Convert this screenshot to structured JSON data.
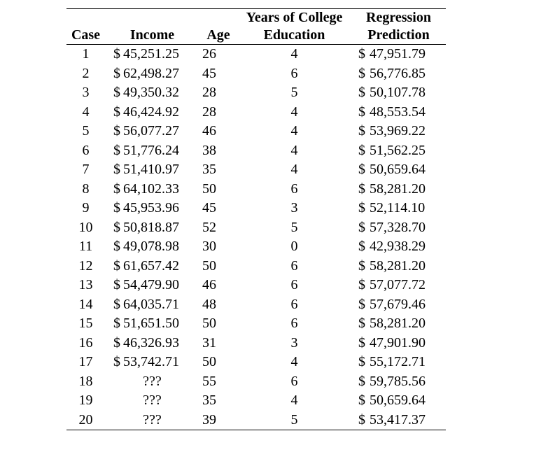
{
  "table": {
    "headers": {
      "case": "Case",
      "income": "Income",
      "age": "Age",
      "education_line1": "Years of College",
      "education_line2": "Education",
      "prediction_line1": "Regression",
      "prediction_line2": "Prediction"
    },
    "rows": [
      {
        "case": "1",
        "income": "45,251.25",
        "income_prefix": "$",
        "age": "26",
        "education": "4",
        "prediction": "47,951.79"
      },
      {
        "case": "2",
        "income": "62,498.27",
        "income_prefix": "$",
        "age": "45",
        "education": "6",
        "prediction": "56,776.85"
      },
      {
        "case": "3",
        "income": "49,350.32",
        "income_prefix": "$",
        "age": "28",
        "education": "5",
        "prediction": "50,107.78"
      },
      {
        "case": "4",
        "income": "46,424.92",
        "income_prefix": "$",
        "age": "28",
        "education": "4",
        "prediction": "48,553.54"
      },
      {
        "case": "5",
        "income": "56,077.27",
        "income_prefix": "$",
        "age": "46",
        "education": "4",
        "prediction": "53,969.22"
      },
      {
        "case": "6",
        "income": "51,776.24",
        "income_prefix": "$",
        "age": "38",
        "education": "4",
        "prediction": "51,562.25"
      },
      {
        "case": "7",
        "income": "51,410.97",
        "income_prefix": "$",
        "age": "35",
        "education": "4",
        "prediction": "50,659.64"
      },
      {
        "case": "8",
        "income": "64,102.33",
        "income_prefix": "$",
        "age": "50",
        "education": "6",
        "prediction": "58,281.20"
      },
      {
        "case": "9",
        "income": "45,953.96",
        "income_prefix": "$",
        "age": "45",
        "education": "3",
        "prediction": "52,114.10"
      },
      {
        "case": "10",
        "income": "50,818.87",
        "income_prefix": "$",
        "age": "52",
        "education": "5",
        "prediction": "57,328.70"
      },
      {
        "case": "11",
        "income": "49,078.98",
        "income_prefix": "$",
        "age": "30",
        "education": "0",
        "prediction": "42,938.29"
      },
      {
        "case": "12",
        "income": "61,657.42",
        "income_prefix": "$",
        "age": "50",
        "education": "6",
        "prediction": "58,281.20"
      },
      {
        "case": "13",
        "income": "54,479.90",
        "income_prefix": "$",
        "age": "46",
        "education": "6",
        "prediction": "57,077.72"
      },
      {
        "case": "14",
        "income": "64,035.71",
        "income_prefix": "$",
        "age": "48",
        "education": "6",
        "prediction": "57,679.46"
      },
      {
        "case": "15",
        "income": "51,651.50",
        "income_prefix": "$",
        "age": "50",
        "education": "6",
        "prediction": "58,281.20"
      },
      {
        "case": "16",
        "income": "46,326.93",
        "income_prefix": "$",
        "age": "31",
        "education": "3",
        "prediction": "47,901.90"
      },
      {
        "case": "17",
        "income": "53,742.71",
        "income_prefix": "$",
        "age": "50",
        "education": "4",
        "prediction": "55,172.71"
      },
      {
        "case": "18",
        "income": "???",
        "income_prefix": "",
        "age": "55",
        "education": "6",
        "prediction": "59,785.56"
      },
      {
        "case": "19",
        "income": "???",
        "income_prefix": "",
        "age": "35",
        "education": "4",
        "prediction": "50,659.64"
      },
      {
        "case": "20",
        "income": "???",
        "income_prefix": "",
        "age": "39",
        "education": "5",
        "prediction": "53,417.37"
      }
    ],
    "prediction_prefix": "$"
  }
}
